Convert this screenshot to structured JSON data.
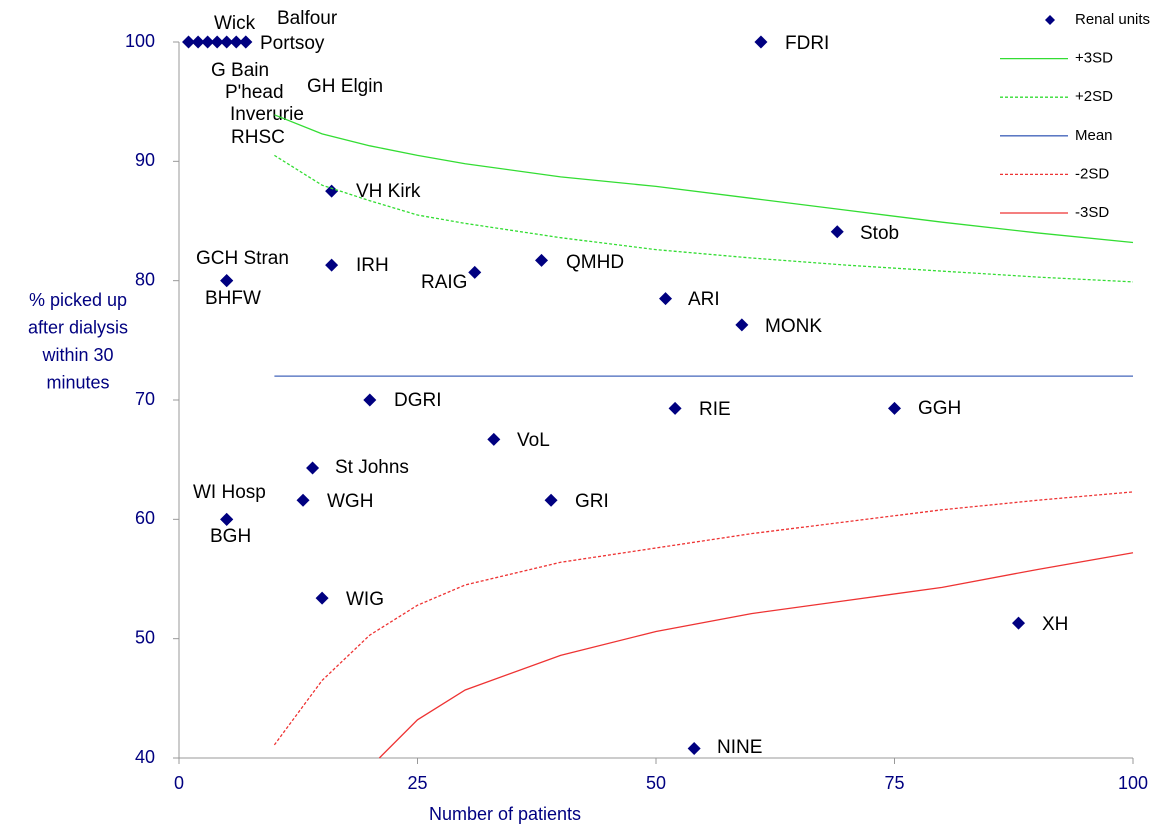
{
  "chart_data": {
    "type": "funnel",
    "x_label": "Number of patients",
    "y_label": [
      "% picked up",
      "after dialysis",
      "within 30",
      "minutes"
    ],
    "xlim": [
      0,
      100
    ],
    "xticks": [
      0,
      25,
      50,
      75,
      100
    ],
    "ylim": [
      40,
      100
    ],
    "yticks": [
      40,
      50,
      60,
      70,
      80,
      90,
      100
    ],
    "series": [
      {
        "name": "Renal units",
        "kind": "scatter",
        "color": "#000080",
        "labels": [
          "Wick",
          "Balfour",
          "Portsoy",
          "G Bain",
          "P'head",
          "GH Elgin",
          "Inverurie",
          "RHSC",
          "FDRI",
          "VH Kirk",
          "Stob",
          "GCH Stran",
          "BHFW",
          "IRH",
          "RAIG",
          "QMHD",
          "ARI",
          "MONK",
          "DGRI",
          "RIE",
          "GGH",
          "VoL",
          "St Johns",
          "WI Hosp",
          "BGH",
          "WGH",
          "GRI",
          "WIG",
          "XH",
          "NINE"
        ],
        "x": [
          1,
          2,
          7,
          3,
          4,
          6,
          5,
          7,
          61,
          16,
          69,
          5,
          5,
          16,
          31,
          38,
          51,
          59,
          20,
          52,
          75,
          33,
          14,
          5,
          5,
          13,
          39,
          15,
          88,
          54
        ],
        "values": [
          100,
          100,
          100,
          100,
          100,
          100,
          100,
          100,
          100,
          87.5,
          84.1,
          80,
          80,
          81.3,
          80.7,
          81.7,
          78.5,
          76.3,
          70,
          69.3,
          69.3,
          66.7,
          64.3,
          60,
          60,
          61.6,
          61.6,
          53.4,
          51.3,
          40.8
        ]
      },
      {
        "name": "+3SD",
        "kind": "line",
        "color": "#33dd33",
        "dash": false,
        "x": [
          10,
          15,
          20,
          25,
          30,
          40,
          50,
          60,
          70,
          80,
          90,
          100
        ],
        "values": [
          93.9,
          92.3,
          91.3,
          90.5,
          89.8,
          88.7,
          87.9,
          86.9,
          85.9,
          84.9,
          84.0,
          83.2
        ]
      },
      {
        "name": "+2SD",
        "kind": "line",
        "color": "#33dd33",
        "dash": true,
        "x": [
          10,
          15,
          20,
          25,
          30,
          40,
          50,
          60,
          70,
          80,
          90,
          100
        ],
        "values": [
          90.5,
          88.0,
          86.7,
          85.5,
          84.8,
          83.6,
          82.6,
          81.9,
          81.3,
          80.8,
          80.3,
          79.9
        ]
      },
      {
        "name": "Mean",
        "kind": "line",
        "color": "#4466bb",
        "dash": false,
        "x": [
          10,
          100
        ],
        "values": [
          72,
          72
        ]
      },
      {
        "name": "-2SD",
        "kind": "line",
        "color": "#ee3333",
        "dash": true,
        "x": [
          10,
          15,
          20,
          25,
          30,
          40,
          50,
          60,
          70,
          80,
          90,
          100
        ],
        "values": [
          41.1,
          46.5,
          50.3,
          52.8,
          54.5,
          56.4,
          57.6,
          58.8,
          59.8,
          60.8,
          61.6,
          62.3
        ]
      },
      {
        "name": "-3SD",
        "kind": "line",
        "color": "#ee3333",
        "dash": false,
        "x": [
          21,
          25,
          30,
          40,
          50,
          60,
          70,
          80,
          90,
          100
        ],
        "values": [
          40,
          43.2,
          45.7,
          48.6,
          50.6,
          52.1,
          53.2,
          54.3,
          55.8,
          57.2
        ]
      }
    ]
  }
}
